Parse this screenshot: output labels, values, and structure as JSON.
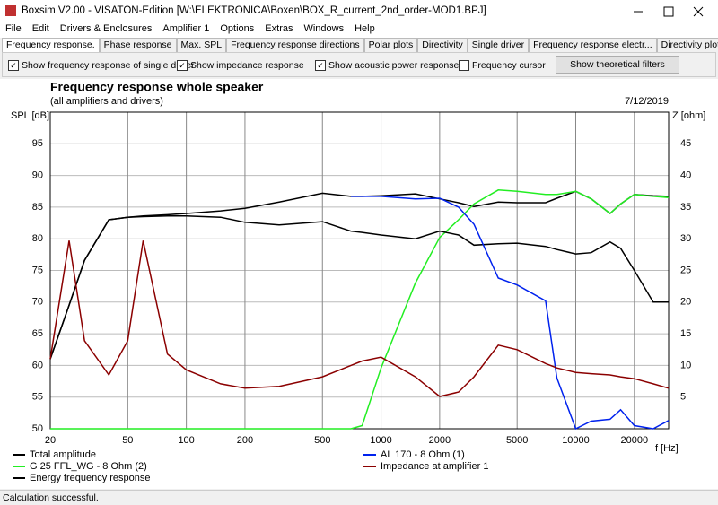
{
  "window": {
    "title": "Boxsim V2.00 - VISATON-Edition [W:\\ELEKTRONICA\\Boxen\\BOX_R_current_2nd_order-MOD1.BPJ]"
  },
  "menu": [
    "File",
    "Edit",
    "Drivers & Enclosures",
    "Amplifier 1",
    "Options",
    "Extras",
    "Windows",
    "Help"
  ],
  "tabs": {
    "items": [
      "Frequency response.",
      "Phase response",
      "Max. SPL",
      "Frequency response directions",
      "Polar plots",
      "Directivity",
      "Single driver",
      "Frequency response electr...",
      "Directivity plots"
    ],
    "active": 0
  },
  "toolbar": {
    "checkboxes": [
      {
        "label": "Show frequency response of single driver",
        "checked": true
      },
      {
        "label": "Show impedance response",
        "checked": true
      },
      {
        "label": "Show acoustic power response",
        "checked": true
      },
      {
        "label": "Frequency cursor",
        "checked": false
      }
    ],
    "button": "Show theoretical filters"
  },
  "chart_data": {
    "type": "line",
    "title": "Frequency response whole speaker",
    "subtitle": "(all amplifiers and drivers)",
    "date": "7/12/2019",
    "y_label": "SPL [dB]",
    "y2_label": "Z [ohm]",
    "x_label": "f [Hz]",
    "log_x": true,
    "grid": true,
    "xlim": [
      20,
      30000
    ],
    "xticks": [
      20,
      50,
      100,
      200,
      500,
      1000,
      2000,
      5000,
      10000,
      20000
    ],
    "ylim": [
      50,
      100
    ],
    "yticks": [
      50,
      55,
      60,
      65,
      70,
      75,
      80,
      85,
      90,
      95
    ],
    "y2lim": [
      0,
      50
    ],
    "y2ticks": [
      5,
      10,
      15,
      20,
      25,
      30,
      35,
      40,
      45
    ],
    "x": [
      20,
      25,
      30,
      40,
      50,
      60,
      80,
      100,
      150,
      200,
      300,
      500,
      700,
      800,
      1000,
      1500,
      2000,
      2500,
      3000,
      4000,
      5000,
      7000,
      8000,
      10000,
      12000,
      15000,
      17000,
      20000,
      25000,
      30000
    ],
    "series": [
      {
        "name": "Total amplitude",
        "color": "#000000",
        "values": [
          61,
          69.5,
          76.6,
          83,
          83.4,
          83.6,
          83.8,
          84,
          84.4,
          84.8,
          85.8,
          87.2,
          86.7,
          86.7,
          86.8,
          87.1,
          86.3,
          85.7,
          85.1,
          85.8,
          85.7,
          85.7,
          86.4,
          87.5,
          86.3,
          84,
          85.5,
          87,
          86.8,
          86.7
        ]
      },
      {
        "name": "G 25 FFL_WG - 8 Ohm (2)",
        "color": "#22ee22",
        "values": [
          50,
          50,
          50,
          50,
          50,
          50,
          50,
          50,
          50,
          50,
          50,
          50,
          50,
          50.5,
          59.6,
          73,
          80.2,
          83,
          85.5,
          87.7,
          87.5,
          87,
          87,
          87.5,
          86.3,
          84,
          85.5,
          87,
          86.7,
          86.5
        ]
      },
      {
        "name": "Energy frequency response",
        "color": "#000000",
        "values": [
          61,
          69.5,
          76.6,
          83,
          83.4,
          83.5,
          83.6,
          83.6,
          83.4,
          82.6,
          82.2,
          82.7,
          81.2,
          81,
          80.6,
          80,
          81.2,
          80.6,
          79,
          79.2,
          79.3,
          78.8,
          78.3,
          77.6,
          77.8,
          79.5,
          78.5,
          75,
          70,
          70
        ]
      },
      {
        "name": "AL 170 - 8 Ohm (1)",
        "color": "#0022ee",
        "values": [
          null,
          null,
          null,
          null,
          null,
          null,
          null,
          null,
          null,
          null,
          null,
          null,
          86.7,
          86.7,
          86.7,
          86.3,
          86.4,
          85,
          82.3,
          73.8,
          72.7,
          70.2,
          58,
          50,
          51.2,
          51.5,
          53,
          50.5,
          50,
          51.3
        ]
      },
      {
        "name": "Impedance at amplifier 1",
        "color": "#8b0000",
        "axis": "y2",
        "values": [
          11,
          29.7,
          13.9,
          8.5,
          13.9,
          29.7,
          11.8,
          9.3,
          7.1,
          6.4,
          6.7,
          8.2,
          10,
          10.7,
          11.3,
          8.2,
          5.1,
          5.8,
          8.2,
          13.2,
          12.5,
          10.3,
          9.6,
          8.9,
          8.7,
          8.5,
          8.2,
          7.9,
          7.1,
          6.4
        ]
      }
    ]
  },
  "status": "Calculation successful."
}
